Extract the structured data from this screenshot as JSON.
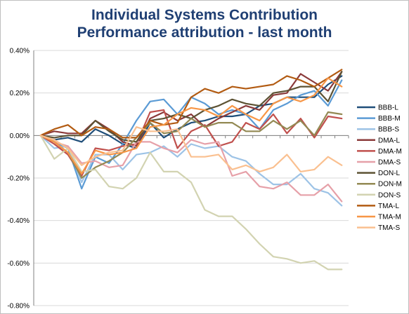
{
  "chart_data": {
    "type": "line",
    "title": "Individual Systems Contribution",
    "subtitle": "Performance attribution - last month",
    "xlabel": "",
    "ylabel": "",
    "ylim": [
      -0.8,
      0.4
    ],
    "y_tick_labels": [
      "0.40%",
      "0.20%",
      "0.00%",
      "-0.20%",
      "-0.40%",
      "-0.60%",
      "-0.80%"
    ],
    "y_ticks": [
      0.4,
      0.2,
      0.0,
      -0.2,
      -0.4,
      -0.6,
      -0.8
    ],
    "y_unit": "%",
    "x": [
      1,
      2,
      3,
      4,
      5,
      6,
      7,
      8,
      9,
      10,
      11,
      12,
      13,
      14,
      15,
      16,
      17,
      18,
      19,
      20,
      21,
      22,
      23
    ],
    "grid": "horizontal",
    "legend_position": "right",
    "series": [
      {
        "name": "BBB-L",
        "color": "#1f4e79",
        "values": [
          0.0,
          -0.02,
          -0.01,
          -0.03,
          0.03,
          0.0,
          -0.04,
          -0.06,
          0.06,
          -0.01,
          0.03,
          0.06,
          0.07,
          0.09,
          0.09,
          0.1,
          0.14,
          0.15,
          0.18,
          0.18,
          0.18,
          0.24,
          0.28
        ]
      },
      {
        "name": "BBB-M",
        "color": "#5b9bd5",
        "values": [
          0.0,
          -0.03,
          -0.06,
          -0.25,
          -0.1,
          -0.13,
          -0.04,
          0.07,
          0.16,
          0.17,
          0.1,
          0.18,
          0.15,
          0.1,
          0.12,
          0.1,
          0.03,
          0.12,
          0.15,
          0.19,
          0.21,
          0.14,
          0.26
        ]
      },
      {
        "name": "BBB-S",
        "color": "#9dc3e6",
        "values": [
          0.0,
          -0.06,
          -0.05,
          -0.22,
          -0.09,
          -0.09,
          -0.16,
          -0.09,
          -0.08,
          -0.05,
          -0.1,
          -0.04,
          -0.06,
          -0.05,
          -0.1,
          -0.12,
          -0.18,
          -0.23,
          -0.23,
          -0.18,
          -0.25,
          -0.27,
          -0.33
        ]
      },
      {
        "name": "DMA-L",
        "color": "#8b3a3a",
        "values": [
          0.0,
          0.02,
          0.01,
          0.01,
          0.07,
          0.03,
          -0.03,
          -0.05,
          0.08,
          0.11,
          0.07,
          0.1,
          0.04,
          0.08,
          0.11,
          0.14,
          0.12,
          0.19,
          0.2,
          0.29,
          0.25,
          0.21,
          0.3
        ]
      },
      {
        "name": "DMA-M",
        "color": "#c0504d",
        "values": [
          0.0,
          -0.04,
          -0.09,
          -0.19,
          -0.06,
          -0.07,
          -0.05,
          -0.04,
          0.11,
          0.12,
          -0.06,
          0.02,
          0.05,
          -0.05,
          -0.03,
          0.06,
          0.03,
          0.1,
          0.01,
          0.08,
          -0.01,
          0.09,
          0.08
        ]
      },
      {
        "name": "DMA-S",
        "color": "#e6a0a8",
        "values": [
          0.0,
          -0.03,
          -0.05,
          -0.13,
          -0.12,
          -0.15,
          -0.14,
          -0.03,
          -0.03,
          -0.06,
          -0.08,
          -0.02,
          -0.04,
          -0.03,
          -0.19,
          -0.17,
          -0.24,
          -0.25,
          -0.22,
          -0.28,
          -0.28,
          -0.23,
          -0.31
        ]
      },
      {
        "name": "DON-L",
        "color": "#5c5233",
        "values": [
          0.0,
          -0.01,
          0.0,
          0.0,
          0.07,
          0.02,
          -0.02,
          -0.03,
          0.07,
          0.08,
          0.1,
          0.08,
          0.12,
          0.14,
          0.17,
          0.15,
          0.14,
          0.2,
          0.21,
          0.23,
          0.23,
          0.16,
          0.3
        ]
      },
      {
        "name": "DON-M",
        "color": "#938953",
        "values": [
          0.0,
          -0.03,
          -0.08,
          -0.2,
          -0.15,
          -0.12,
          -0.08,
          -0.01,
          0.06,
          0.01,
          0.02,
          0.08,
          0.04,
          0.06,
          0.06,
          0.02,
          0.02,
          0.07,
          0.03,
          0.07,
          0.0,
          0.11,
          0.1
        ]
      },
      {
        "name": "DON-S",
        "color": "#d2d3b1",
        "values": [
          0.0,
          -0.11,
          -0.06,
          -0.17,
          -0.16,
          -0.24,
          -0.25,
          -0.2,
          -0.08,
          -0.17,
          -0.17,
          -0.22,
          -0.35,
          -0.38,
          -0.38,
          -0.44,
          -0.51,
          -0.57,
          -0.58,
          -0.6,
          -0.59,
          -0.63,
          -0.63
        ]
      },
      {
        "name": "TMA-L",
        "color": "#b25b12",
        "values": [
          0.0,
          0.03,
          0.05,
          0.0,
          0.04,
          0.03,
          -0.01,
          -0.01,
          0.07,
          0.05,
          0.06,
          0.18,
          0.22,
          0.2,
          0.23,
          0.22,
          0.23,
          0.24,
          0.28,
          0.26,
          0.23,
          0.27,
          0.31
        ]
      },
      {
        "name": "TMA-M",
        "color": "#f79646",
        "values": [
          0.0,
          -0.03,
          -0.08,
          -0.18,
          -0.07,
          -0.09,
          -0.08,
          -0.06,
          0.04,
          0.05,
          0.1,
          0.13,
          0.12,
          0.09,
          0.14,
          0.1,
          0.07,
          0.15,
          0.18,
          0.16,
          0.19,
          0.27,
          0.23
        ]
      },
      {
        "name": "TMA-S",
        "color": "#fac090",
        "values": [
          0.0,
          -0.02,
          -0.06,
          -0.14,
          -0.1,
          -0.08,
          -0.07,
          0.04,
          0.02,
          0.02,
          0.03,
          -0.1,
          -0.1,
          -0.09,
          -0.16,
          -0.14,
          -0.17,
          -0.15,
          -0.09,
          -0.17,
          -0.16,
          -0.1,
          -0.14
        ]
      }
    ]
  }
}
